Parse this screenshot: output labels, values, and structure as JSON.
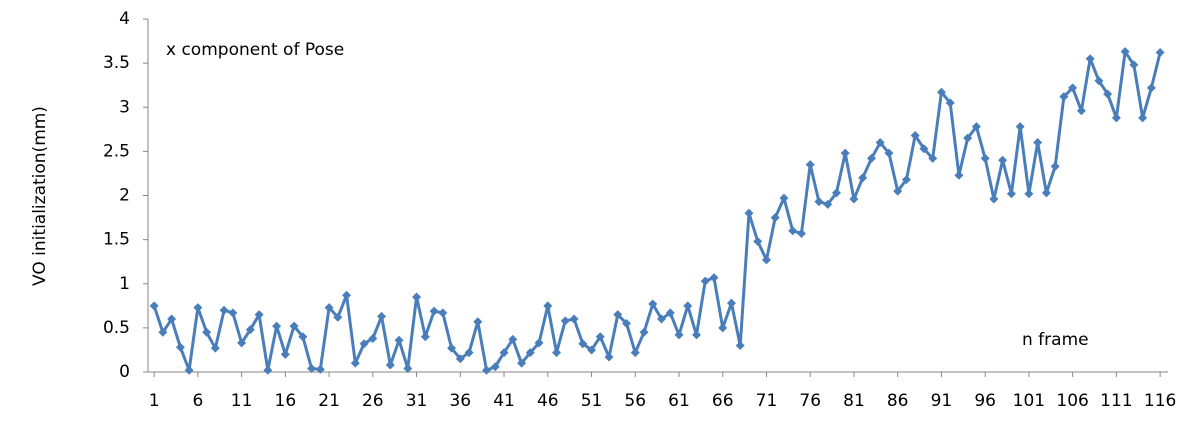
{
  "chart_data": {
    "type": "line",
    "y_label": "VO initialization(mm)",
    "annotations": [
      "x component of Pose",
      "n frame"
    ],
    "x": [
      1,
      2,
      3,
      4,
      5,
      6,
      7,
      8,
      9,
      10,
      11,
      12,
      13,
      14,
      15,
      16,
      17,
      18,
      19,
      20,
      21,
      22,
      23,
      24,
      25,
      26,
      27,
      28,
      29,
      30,
      31,
      32,
      33,
      34,
      35,
      36,
      37,
      38,
      39,
      40,
      41,
      42,
      43,
      44,
      45,
      46,
      47,
      48,
      49,
      50,
      51,
      52,
      53,
      54,
      55,
      56,
      57,
      58,
      59,
      60,
      61,
      62,
      63,
      64,
      65,
      66,
      67,
      68,
      69,
      70,
      71,
      72,
      73,
      74,
      75,
      76,
      77,
      78,
      79,
      80,
      81,
      82,
      83,
      84,
      85,
      86,
      87,
      88,
      89,
      90,
      91,
      92,
      93,
      94,
      95,
      96,
      97,
      98,
      99,
      100,
      101,
      102,
      103,
      104,
      105,
      106,
      107,
      108,
      109,
      110,
      111,
      112,
      113,
      114,
      115,
      116
    ],
    "xlim": [
      0.3,
      116.9
    ],
    "xticks": [
      1,
      6,
      11,
      16,
      21,
      26,
      31,
      36,
      41,
      46,
      51,
      56,
      61,
      66,
      71,
      76,
      81,
      86,
      91,
      96,
      101,
      106,
      111,
      116
    ],
    "ylim": [
      0,
      4
    ],
    "yticks": [
      0,
      0.5,
      1,
      1.5,
      2,
      2.5,
      3,
      3.5,
      4
    ],
    "grid": false,
    "series": [
      {
        "color": "#4a7ebb",
        "values": [
          0.75,
          0.45,
          0.6,
          0.28,
          0.02,
          0.73,
          0.45,
          0.27,
          0.7,
          0.67,
          0.33,
          0.48,
          0.65,
          0.02,
          0.52,
          0.2,
          0.52,
          0.4,
          0.04,
          0.03,
          0.73,
          0.62,
          0.87,
          0.1,
          0.32,
          0.38,
          0.63,
          0.08,
          0.36,
          0.04,
          0.85,
          0.4,
          0.69,
          0.67,
          0.27,
          0.15,
          0.22,
          0.57,
          0.02,
          0.06,
          0.22,
          0.37,
          0.1,
          0.22,
          0.33,
          0.75,
          0.22,
          0.58,
          0.6,
          0.32,
          0.25,
          0.4,
          0.17,
          0.65,
          0.55,
          0.22,
          0.45,
          0.77,
          0.6,
          0.67,
          0.42,
          0.75,
          0.42,
          1.03,
          1.07,
          0.5,
          0.78,
          0.3,
          1.8,
          1.48,
          1.27,
          1.75,
          1.97,
          1.6,
          1.57,
          2.35,
          1.93,
          1.9,
          2.03,
          2.48,
          1.96,
          2.2,
          2.42,
          2.6,
          2.48,
          2.05,
          2.18,
          2.68,
          2.53,
          2.42,
          3.17,
          3.05,
          2.23,
          2.65,
          2.78,
          2.42,
          1.96,
          2.4,
          2.02,
          2.78,
          2.02,
          2.6,
          2.03,
          2.33,
          3.12,
          3.22,
          2.96,
          3.55,
          3.3,
          3.15,
          2.88,
          3.63,
          3.48,
          2.88,
          3.22,
          3.62
        ]
      }
    ]
  }
}
